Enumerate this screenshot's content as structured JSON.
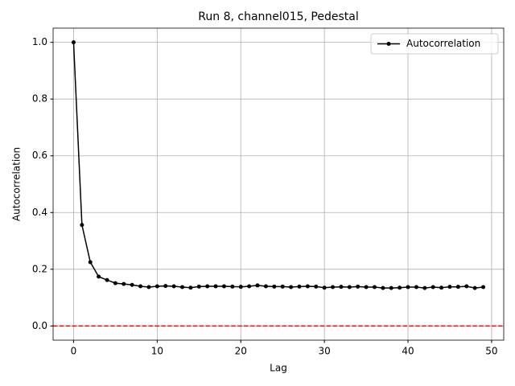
{
  "chart_data": {
    "type": "line",
    "title": "Run 8, channel015, Pedestal",
    "xlabel": "Lag",
    "ylabel": "Autocorrelation",
    "x": [
      0,
      1,
      2,
      3,
      4,
      5,
      6,
      7,
      8,
      9,
      10,
      11,
      12,
      13,
      14,
      15,
      16,
      17,
      18,
      19,
      20,
      21,
      22,
      23,
      24,
      25,
      26,
      27,
      28,
      29,
      30,
      31,
      32,
      33,
      34,
      35,
      36,
      37,
      38,
      39,
      40,
      41,
      42,
      43,
      44,
      45,
      46,
      47,
      48,
      49
    ],
    "series": [
      {
        "name": "Autocorrelation",
        "color": "#000000",
        "values": [
          1.0,
          0.356,
          0.225,
          0.174,
          0.162,
          0.151,
          0.148,
          0.145,
          0.14,
          0.137,
          0.14,
          0.141,
          0.14,
          0.137,
          0.135,
          0.139,
          0.14,
          0.14,
          0.14,
          0.139,
          0.138,
          0.14,
          0.143,
          0.14,
          0.139,
          0.139,
          0.137,
          0.139,
          0.14,
          0.139,
          0.135,
          0.137,
          0.138,
          0.137,
          0.139,
          0.137,
          0.137,
          0.134,
          0.134,
          0.135,
          0.137,
          0.137,
          0.134,
          0.137,
          0.135,
          0.138,
          0.138,
          0.14,
          0.134,
          0.137
        ]
      }
    ],
    "hline": {
      "value": 0,
      "color": "#ff0000"
    },
    "xlim": [
      -2.45,
      51.45
    ],
    "xticks": [
      0,
      10,
      20,
      30,
      40,
      50
    ],
    "ylim": [
      -0.05,
      1.05
    ],
    "yticks": [
      {
        "value": 0,
        "label": "0.0"
      },
      {
        "value": 0.2,
        "label": "0.2"
      },
      {
        "value": 0.4,
        "label": "0.4"
      },
      {
        "value": 0.6,
        "label": "0.6"
      },
      {
        "value": 0.8,
        "label": "0.8"
      },
      {
        "value": 1.0,
        "label": "1.0"
      }
    ],
    "grid": true,
    "legend": "upper right"
  }
}
